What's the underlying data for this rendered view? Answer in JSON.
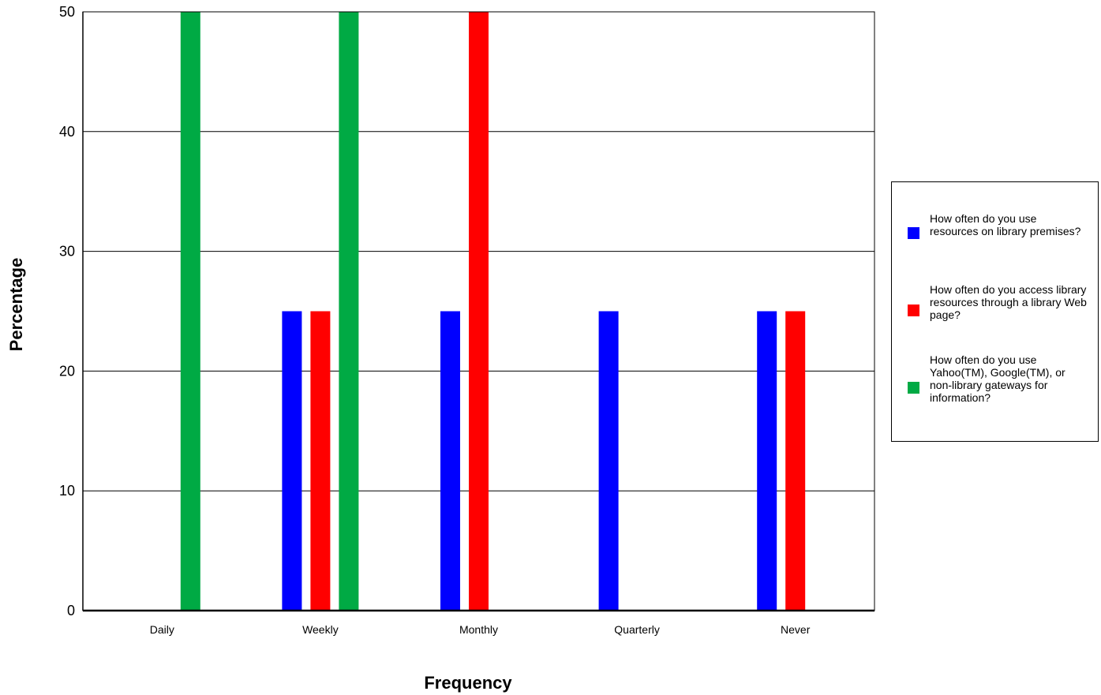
{
  "chart_data": {
    "type": "bar",
    "categories": [
      "Daily",
      "Weekly",
      "Monthly",
      "Quarterly",
      "Never"
    ],
    "series": [
      {
        "name": "How often do you use resources on library premises?",
        "color": "#0000ff",
        "values": [
          0,
          25,
          25,
          25,
          25
        ]
      },
      {
        "name": "How often do you access library resources through a library Web page?",
        "color": "#ff0000",
        "values": [
          0,
          25,
          50,
          0,
          25
        ]
      },
      {
        "name": "How often do you use Yahoo(TM), Google(TM), or non-library gateways for information?",
        "color": "#00aa44",
        "values": [
          50,
          50,
          0,
          0,
          0
        ]
      }
    ],
    "xlabel": "Frequency",
    "ylabel": "Percentage",
    "ylim": [
      0,
      50
    ],
    "yticks": [
      0,
      10,
      20,
      30,
      40,
      50
    ],
    "grid": true,
    "legend_position": "right"
  }
}
